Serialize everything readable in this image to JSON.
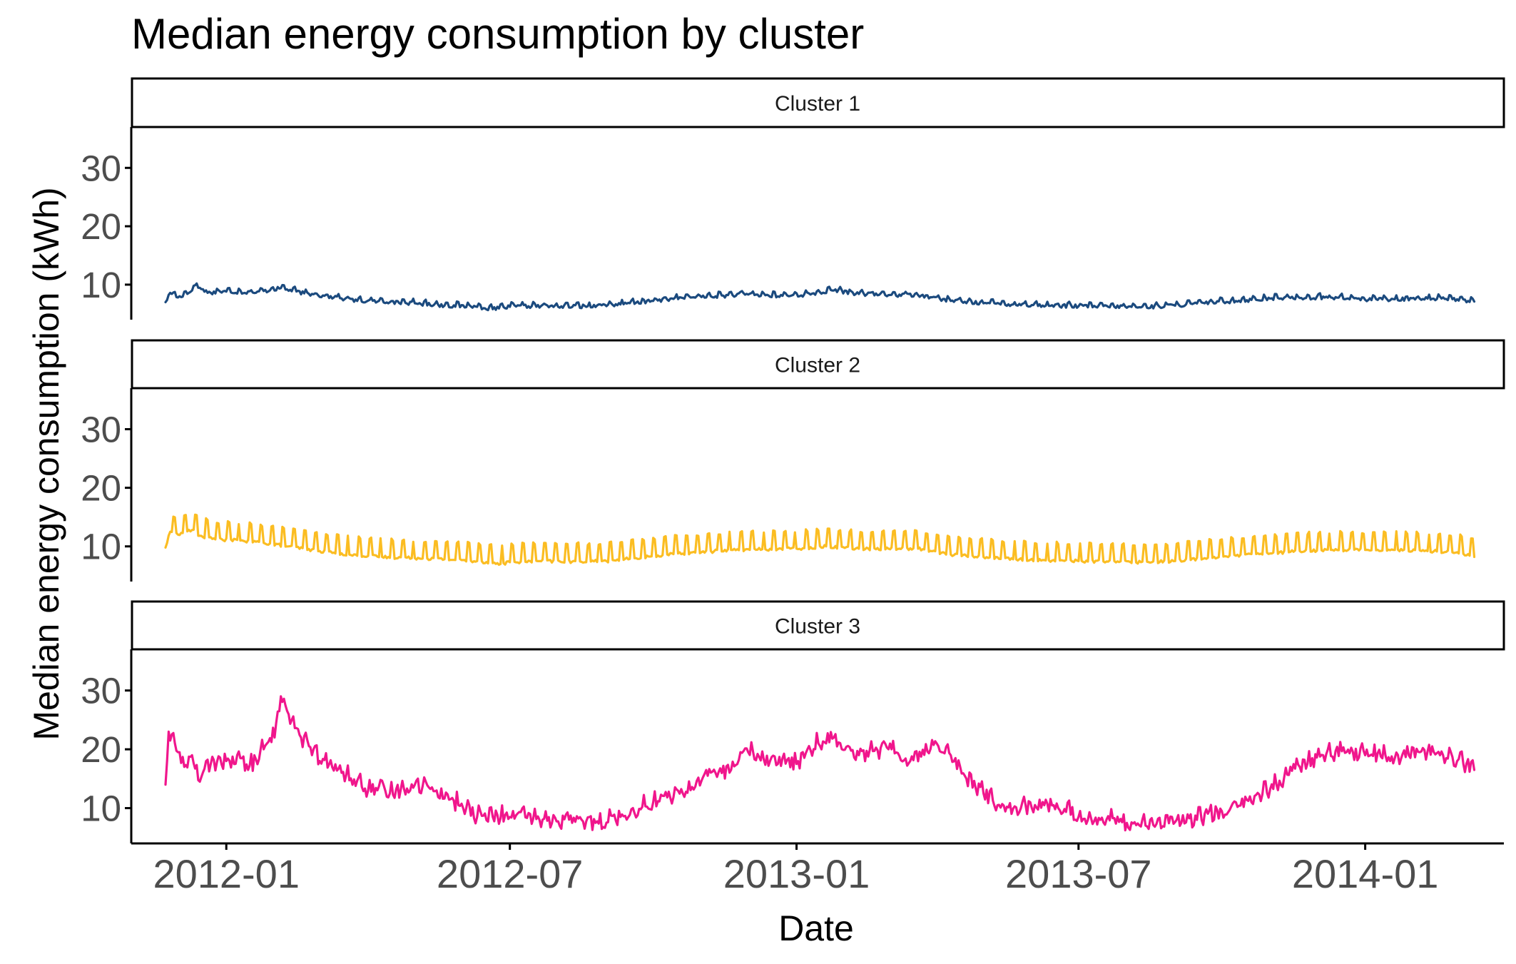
{
  "chart_data": {
    "type": "line",
    "title": "Median energy consumption by cluster",
    "xlabel": "Date",
    "ylabel": "Median energy consumption (kWh)",
    "x_range": [
      "2011-11-01",
      "2014-03-31"
    ],
    "y_range": [
      4,
      37
    ],
    "y_ticks": [
      10,
      20,
      30
    ],
    "y_tick_labels": [
      "10",
      "20",
      "30"
    ],
    "x_ticks": [
      "2012-01-01",
      "2012-07-01",
      "2013-01-01",
      "2013-07-01",
      "2014-01-01"
    ],
    "x_tick_labels": [
      "2012-01",
      "2012-07",
      "2013-01",
      "2013-07",
      "2014-01"
    ],
    "grid": false,
    "legend": "none",
    "facet_layout": "vertical",
    "series": [
      {
        "name": "Cluster 1",
        "color": "#1b4a7e",
        "weekly_amplitude": 0.5,
        "noise": 0.3,
        "points": [
          [
            "2011-11-23",
            7.0
          ],
          [
            "2011-11-26",
            8.6
          ],
          [
            "2011-12-01",
            7.8
          ],
          [
            "2011-12-08",
            8.6
          ],
          [
            "2011-12-12",
            9.9
          ],
          [
            "2011-12-20",
            8.6
          ],
          [
            "2012-01-01",
            8.8
          ],
          [
            "2012-01-20",
            8.6
          ],
          [
            "2012-02-05",
            9.4
          ],
          [
            "2012-02-20",
            8.5
          ],
          [
            "2012-03-10",
            7.8
          ],
          [
            "2012-03-25",
            7.2
          ],
          [
            "2012-04-15",
            7.0
          ],
          [
            "2012-05-01",
            6.8
          ],
          [
            "2012-05-20",
            6.4
          ],
          [
            "2012-06-10",
            6.2
          ],
          [
            "2012-06-20",
            5.8
          ],
          [
            "2012-07-01",
            6.2
          ],
          [
            "2012-07-15",
            6.3
          ],
          [
            "2012-08-01",
            6.2
          ],
          [
            "2012-08-20",
            6.3
          ],
          [
            "2012-09-10",
            6.6
          ],
          [
            "2012-10-01",
            7.2
          ],
          [
            "2012-10-20",
            7.7
          ],
          [
            "2012-11-10",
            8.0
          ],
          [
            "2012-12-01",
            8.3
          ],
          [
            "2012-12-20",
            8.0
          ],
          [
            "2013-01-10",
            8.3
          ],
          [
            "2013-01-25",
            9.0
          ],
          [
            "2013-02-10",
            8.4
          ],
          [
            "2013-03-01",
            8.2
          ],
          [
            "2013-03-20",
            8.2
          ],
          [
            "2013-04-10",
            7.2
          ],
          [
            "2013-05-01",
            6.8
          ],
          [
            "2013-05-20",
            6.6
          ],
          [
            "2013-06-10",
            6.4
          ],
          [
            "2013-07-01",
            6.3
          ],
          [
            "2013-07-20",
            6.2
          ],
          [
            "2013-08-10",
            6.1
          ],
          [
            "2013-09-01",
            6.4
          ],
          [
            "2013-09-20",
            6.8
          ],
          [
            "2013-10-10",
            7.2
          ],
          [
            "2013-11-01",
            7.6
          ],
          [
            "2013-11-20",
            7.7
          ],
          [
            "2013-12-10",
            7.8
          ],
          [
            "2014-01-01",
            7.4
          ],
          [
            "2014-01-20",
            7.5
          ],
          [
            "2014-02-10",
            7.6
          ],
          [
            "2014-03-01",
            7.5
          ],
          [
            "2014-03-12",
            7.1
          ]
        ]
      },
      {
        "name": "Cluster 2",
        "color": "#fbbd22",
        "weekly_amplitude": 3.0,
        "noise": 0.25,
        "points": [
          [
            "2011-11-23",
            9.8
          ],
          [
            "2011-11-26",
            12.5
          ],
          [
            "2011-12-01",
            12.0
          ],
          [
            "2011-12-10",
            12.8
          ],
          [
            "2011-12-15",
            11.8
          ],
          [
            "2011-12-25",
            11.2
          ],
          [
            "2012-01-10",
            11.0
          ],
          [
            "2012-01-25",
            10.6
          ],
          [
            "2012-02-10",
            10.0
          ],
          [
            "2012-03-01",
            9.2
          ],
          [
            "2012-03-20",
            8.6
          ],
          [
            "2012-04-10",
            8.2
          ],
          [
            "2012-05-01",
            8.0
          ],
          [
            "2012-05-20",
            7.8
          ],
          [
            "2012-06-10",
            7.5
          ],
          [
            "2012-06-25",
            7.0
          ],
          [
            "2012-07-01",
            7.3
          ],
          [
            "2012-07-20",
            7.5
          ],
          [
            "2012-08-10",
            7.4
          ],
          [
            "2012-09-01",
            7.5
          ],
          [
            "2012-09-20",
            8.0
          ],
          [
            "2012-10-10",
            8.6
          ],
          [
            "2012-11-01",
            9.0
          ],
          [
            "2012-11-20",
            9.4
          ],
          [
            "2012-12-10",
            9.5
          ],
          [
            "2013-01-01",
            9.6
          ],
          [
            "2013-01-20",
            10.0
          ],
          [
            "2013-02-10",
            9.6
          ],
          [
            "2013-03-01",
            9.6
          ],
          [
            "2013-03-20",
            9.6
          ],
          [
            "2013-04-10",
            8.6
          ],
          [
            "2013-05-01",
            8.2
          ],
          [
            "2013-05-20",
            7.8
          ],
          [
            "2013-06-10",
            7.6
          ],
          [
            "2013-07-01",
            7.5
          ],
          [
            "2013-07-20",
            7.4
          ],
          [
            "2013-08-10",
            7.3
          ],
          [
            "2013-09-01",
            7.5
          ],
          [
            "2013-09-20",
            8.0
          ],
          [
            "2013-10-10",
            8.4
          ],
          [
            "2013-11-01",
            8.8
          ],
          [
            "2013-11-20",
            9.2
          ],
          [
            "2013-12-10",
            9.4
          ],
          [
            "2014-01-01",
            9.4
          ],
          [
            "2014-01-20",
            9.4
          ],
          [
            "2014-02-10",
            9.2
          ],
          [
            "2014-03-01",
            9.0
          ],
          [
            "2014-03-12",
            8.2
          ]
        ]
      },
      {
        "name": "Cluster 3",
        "color": "#f0168c",
        "weekly_amplitude": 0.8,
        "noise": 1.3,
        "points": [
          [
            "2011-11-23",
            14.0
          ],
          [
            "2011-11-25",
            23.0
          ],
          [
            "2011-12-01",
            19.5
          ],
          [
            "2011-12-05",
            17.0
          ],
          [
            "2011-12-10",
            19.0
          ],
          [
            "2011-12-15",
            14.5
          ],
          [
            "2011-12-22",
            17.5
          ],
          [
            "2012-01-01",
            18.0
          ],
          [
            "2012-01-10",
            18.5
          ],
          [
            "2012-01-15",
            16.5
          ],
          [
            "2012-01-25",
            20.0
          ],
          [
            "2012-02-01",
            22.0
          ],
          [
            "2012-02-05",
            29.0
          ],
          [
            "2012-02-12",
            25.0
          ],
          [
            "2012-02-18",
            22.0
          ],
          [
            "2012-03-01",
            18.0
          ],
          [
            "2012-03-15",
            16.0
          ],
          [
            "2012-04-01",
            13.0
          ],
          [
            "2012-04-15",
            12.5
          ],
          [
            "2012-05-01",
            14.0
          ],
          [
            "2012-05-15",
            13.0
          ],
          [
            "2012-06-01",
            10.0
          ],
          [
            "2012-06-10",
            8.5
          ],
          [
            "2012-06-20",
            8.5
          ],
          [
            "2012-07-01",
            8.5
          ],
          [
            "2012-07-20",
            8.0
          ],
          [
            "2012-08-10",
            7.5
          ],
          [
            "2012-08-25",
            7.5
          ],
          [
            "2012-09-10",
            8.5
          ],
          [
            "2012-10-01",
            11.0
          ],
          [
            "2012-10-20",
            12.5
          ],
          [
            "2012-11-05",
            15.5
          ],
          [
            "2012-11-20",
            16.5
          ],
          [
            "2012-12-01",
            19.5
          ],
          [
            "2012-12-15",
            18.0
          ],
          [
            "2013-01-01",
            17.5
          ],
          [
            "2013-01-15",
            21.0
          ],
          [
            "2013-01-25",
            22.0
          ],
          [
            "2013-02-10",
            19.0
          ],
          [
            "2013-03-01",
            20.0
          ],
          [
            "2013-03-15",
            18.0
          ],
          [
            "2013-04-01",
            21.0
          ],
          [
            "2013-04-10",
            19.0
          ],
          [
            "2013-04-20",
            15.0
          ],
          [
            "2013-05-01",
            12.5
          ],
          [
            "2013-05-10",
            10.5
          ],
          [
            "2013-05-25",
            10.0
          ],
          [
            "2013-06-15",
            10.5
          ],
          [
            "2013-07-01",
            8.5
          ],
          [
            "2013-07-15",
            8.0
          ],
          [
            "2013-08-01",
            7.5
          ],
          [
            "2013-08-20",
            7.3
          ],
          [
            "2013-09-05",
            7.5
          ],
          [
            "2013-09-15",
            8.0
          ],
          [
            "2013-10-01",
            9.5
          ],
          [
            "2013-10-20",
            11.0
          ],
          [
            "2013-11-05",
            14.0
          ],
          [
            "2013-11-20",
            17.0
          ],
          [
            "2013-12-05",
            19.0
          ],
          [
            "2013-12-20",
            19.5
          ],
          [
            "2014-01-01",
            19.0
          ],
          [
            "2014-01-20",
            18.5
          ],
          [
            "2014-02-05",
            19.5
          ],
          [
            "2014-02-20",
            19.0
          ],
          [
            "2014-03-01",
            18.0
          ],
          [
            "2014-03-12",
            16.5
          ]
        ]
      }
    ]
  }
}
